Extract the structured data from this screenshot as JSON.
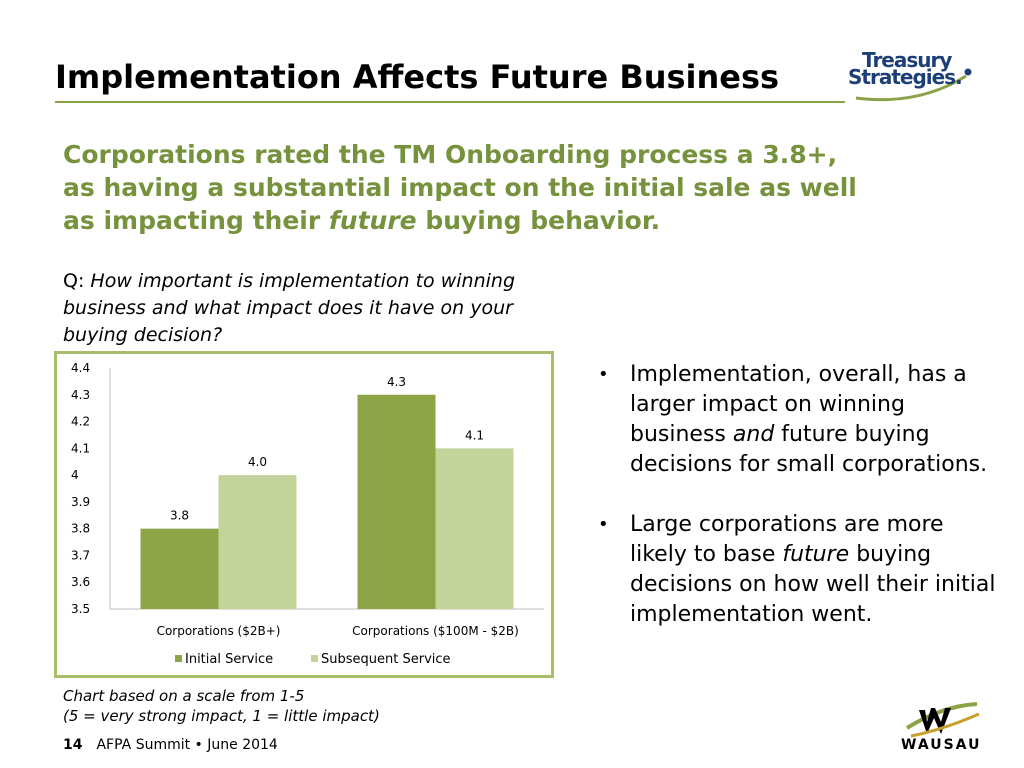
{
  "slide": {
    "title": "Implementation Affects Future Business",
    "subtitle_line1": "Corporations rated the TM Onboarding process a 3.8+,",
    "subtitle_line2": "as having a substantial impact on the initial sale as well",
    "subtitle_line3_pre": "as impacting their ",
    "subtitle_line3_em": "future",
    "subtitle_line3_post": " buying behavior.",
    "question_prefix": "Q: ",
    "question_text": "How important is implementation to winning business and what impact does it have on your buying decision?",
    "note_line1": "Chart based on a scale from 1-5",
    "note_line2": "(5 = very strong impact, 1 = little impact)"
  },
  "bullets": [
    {
      "pre": "Implementation, overall, has a larger impact on winning business ",
      "em": "and",
      "post": " future buying decisions for small corporations."
    },
    {
      "pre": "Large corporations are more likely to base ",
      "em": "future",
      "post": " buying decisions on how well their initial implementation went."
    }
  ],
  "footer": {
    "page": "14",
    "event": "AFPA Summit • June 2014"
  },
  "logos": {
    "top_line1": "Treasury",
    "top_line2": "Strategies.",
    "bottom": "WAUSAU"
  },
  "colors": {
    "accent_green": "#76923c",
    "initial_service": "#8da546",
    "subsequent_service": "#c4d39a",
    "chart_border": "#a8bf6a",
    "logo_blue": "#1d3f78"
  },
  "chart_data": {
    "type": "bar",
    "categories": [
      "Corporations ($2B+)",
      "Corporations ($100M - $2B)"
    ],
    "series": [
      {
        "name": "Initial Service",
        "values": [
          3.8,
          4.3
        ],
        "labels": [
          "3.8",
          "4.3"
        ]
      },
      {
        "name": "Subsequent Service",
        "values": [
          4.0,
          4.1
        ],
        "labels": [
          "4.0",
          "4.1"
        ]
      }
    ],
    "ylim": [
      3.5,
      4.4
    ],
    "yticks": [
      "4.4",
      "4.3",
      "4.2",
      "4.1",
      "4",
      "3.9",
      "3.8",
      "3.7",
      "3.6",
      "3.5"
    ],
    "legend_position": "bottom",
    "grid": false
  }
}
